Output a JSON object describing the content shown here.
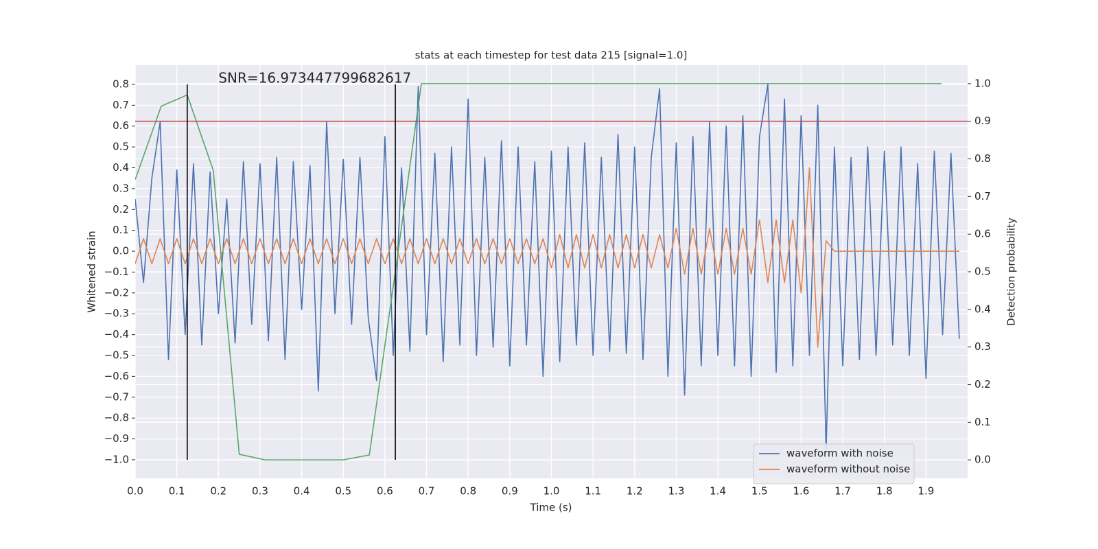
{
  "chart_data": {
    "type": "line",
    "title": "stats at each timestep for test data 215 [signal=1.0]",
    "xlabel": "Time (s)",
    "ylabel": "Whitened strain",
    "y2label": "Detection probability",
    "annotation": {
      "text": "SNR=16.973447799682617",
      "x": 0.2,
      "y": 0.8
    },
    "grid": true,
    "background": "#eaeaf2",
    "legend": "lower right",
    "xlim": [
      0,
      2.0
    ],
    "ylim": [
      -1.089,
      0.892
    ],
    "y2lim": [
      -0.049,
      1.049
    ],
    "xticks": [
      {
        "value": 0,
        "label": "0.0"
      },
      0.1,
      0.2,
      0.3,
      0.4,
      0.5,
      0.6,
      0.7,
      0.8,
      0.9,
      {
        "value": 1,
        "label": "1.0"
      },
      1.1,
      1.2,
      1.3,
      1.4,
      1.5,
      1.6,
      1.7,
      1.8,
      1.9
    ],
    "yticks": [
      {
        "value": -1.0,
        "label": "−1.0"
      },
      {
        "value": -0.9,
        "label": "−0.9"
      },
      {
        "value": -0.8,
        "label": "−0.8"
      },
      {
        "value": -0.7,
        "label": "−0.7"
      },
      {
        "value": -0.6,
        "label": "−0.6"
      },
      {
        "value": -0.5,
        "label": "−0.5"
      },
      {
        "value": -0.4,
        "label": "−0.4"
      },
      {
        "value": -0.3,
        "label": "−0.3"
      },
      {
        "value": -0.2,
        "label": "−0.2"
      },
      {
        "value": -0.1,
        "label": "−0.1"
      },
      {
        "value": 0,
        "label": "0.0"
      },
      0.1,
      0.2,
      0.3,
      0.4,
      0.5,
      0.6,
      0.7,
      0.8
    ],
    "y2ticks": [
      {
        "value": 0,
        "label": "0.0"
      },
      0.1,
      0.2,
      0.3,
      0.4,
      0.5,
      0.6,
      0.7,
      0.8,
      0.9,
      {
        "value": 1,
        "label": "1.0"
      }
    ],
    "x": [
      0,
      0.02,
      0.04,
      0.06,
      0.08,
      0.1,
      0.12,
      0.14,
      0.16,
      0.18,
      0.2,
      0.22,
      0.24,
      0.26,
      0.28,
      0.3,
      0.32,
      0.34,
      0.36,
      0.38,
      0.4,
      0.42,
      0.44,
      0.46,
      0.48,
      0.5,
      0.52,
      0.54,
      0.56,
      0.58,
      0.6,
      0.62,
      0.64,
      0.66,
      0.68,
      0.7,
      0.72,
      0.74,
      0.76,
      0.78,
      0.8,
      0.82,
      0.84,
      0.86,
      0.88,
      0.9,
      0.92,
      0.94,
      0.96,
      0.98,
      1.0,
      1.02,
      1.04,
      1.06,
      1.08,
      1.1,
      1.12,
      1.14,
      1.16,
      1.18,
      1.2,
      1.22,
      1.24,
      1.26,
      1.28,
      1.3,
      1.32,
      1.34,
      1.36,
      1.38,
      1.4,
      1.42,
      1.44,
      1.46,
      1.48,
      1.5,
      1.52,
      1.54,
      1.56,
      1.58,
      1.6,
      1.62,
      1.64,
      1.66,
      1.68,
      1.7,
      1.72,
      1.74,
      1.76,
      1.78,
      1.8,
      1.82,
      1.84,
      1.86,
      1.88,
      1.9,
      1.92,
      1.94,
      1.96,
      1.98
    ],
    "series": [
      {
        "name": "waveform with noise",
        "color": "#4c72b0",
        "axis": "y",
        "values": [
          0.25,
          -0.15,
          0.35,
          0.62,
          -0.52,
          0.39,
          -0.4,
          0.42,
          -0.45,
          0.38,
          -0.3,
          0.25,
          -0.44,
          0.43,
          -0.35,
          0.42,
          -0.43,
          0.45,
          -0.52,
          0.43,
          -0.28,
          0.41,
          -0.67,
          0.62,
          -0.3,
          0.44,
          -0.35,
          0.45,
          -0.32,
          -0.62,
          0.55,
          -0.5,
          0.4,
          -0.48,
          0.79,
          -0.4,
          0.47,
          -0.53,
          0.5,
          -0.45,
          0.73,
          -0.5,
          0.45,
          -0.46,
          0.53,
          -0.55,
          0.5,
          -0.45,
          0.43,
          -0.6,
          0.48,
          -0.53,
          0.5,
          -0.45,
          0.52,
          -0.5,
          0.45,
          -0.48,
          0.56,
          -0.49,
          0.5,
          -0.52,
          0.45,
          0.78,
          -0.6,
          0.52,
          -0.69,
          0.55,
          -0.55,
          0.62,
          -0.5,
          0.6,
          -0.55,
          0.65,
          -0.6,
          0.55,
          0.8,
          -0.58,
          0.73,
          -0.55,
          0.65,
          -0.5,
          0.7,
          -0.95,
          0.5,
          -0.55,
          0.45,
          -0.52,
          0.5,
          -0.5,
          0.48,
          -0.45,
          0.5,
          -0.5,
          0.42,
          -0.61,
          0.48,
          -0.4,
          0.47,
          -0.42
        ]
      },
      {
        "name": "waveform without noise",
        "color": "#dd8452",
        "axis": "y",
        "values": [
          -0.06,
          0.06,
          -0.06,
          0.06,
          -0.06,
          0.06,
          -0.06,
          0.06,
          -0.06,
          0.06,
          -0.06,
          0.06,
          -0.06,
          0.06,
          -0.06,
          0.06,
          -0.06,
          0.06,
          -0.06,
          0.06,
          -0.06,
          0.06,
          -0.06,
          0.06,
          -0.06,
          0.06,
          -0.06,
          0.06,
          -0.06,
          0.06,
          -0.06,
          0.06,
          -0.06,
          0.06,
          -0.06,
          0.06,
          -0.06,
          0.06,
          -0.06,
          0.06,
          -0.06,
          0.06,
          -0.06,
          0.06,
          -0.06,
          0.06,
          -0.06,
          0.06,
          -0.06,
          0.06,
          -0.08,
          0.08,
          -0.08,
          0.08,
          -0.08,
          0.08,
          -0.08,
          0.08,
          -0.08,
          0.08,
          -0.08,
          0.08,
          -0.08,
          0.08,
          -0.08,
          0.11,
          -0.11,
          0.11,
          -0.11,
          0.11,
          -0.11,
          0.11,
          -0.11,
          0.11,
          -0.11,
          0.15,
          -0.15,
          0.15,
          -0.15,
          0.15,
          -0.2,
          0.4,
          -0.46,
          0.05,
          0,
          0,
          0,
          0,
          0,
          0,
          0,
          0,
          0,
          0,
          0,
          0,
          0,
          0,
          0,
          0
        ]
      },
      {
        "color": "#55a868",
        "axis": "y2",
        "x": [
          0,
          0.0625,
          0.125,
          0.1875,
          0.25,
          0.3125,
          0.375,
          0.4375,
          0.5,
          0.5625,
          0.625,
          0.6875,
          0.75,
          0.8125,
          0.875,
          0.9375,
          1.0,
          1.0625,
          1.125,
          1.1875,
          1.25,
          1.3125,
          1.375,
          1.4375,
          1.5,
          1.5625,
          1.625,
          1.6875,
          1.75,
          1.8125,
          1.875,
          1.9375
        ],
        "values": [
          0.745,
          0.94,
          0.97,
          0.77,
          0.015,
          0,
          0,
          0,
          0,
          0.013,
          0.5,
          1,
          1,
          1,
          1,
          1,
          1,
          1,
          1,
          1,
          1,
          1,
          1,
          1,
          1,
          1,
          1,
          1,
          1,
          1,
          1,
          1
        ]
      }
    ],
    "hlines": [
      {
        "y": 0.9,
        "axis": "y2",
        "color": "#c44e52"
      }
    ],
    "vlines": [
      {
        "x": 0.125,
        "ymin": -1.0,
        "ymax": 0.8,
        "color": "#000000"
      },
      {
        "x": 0.625,
        "ymin": -1.0,
        "ymax": 0.8,
        "color": "#000000"
      }
    ]
  }
}
